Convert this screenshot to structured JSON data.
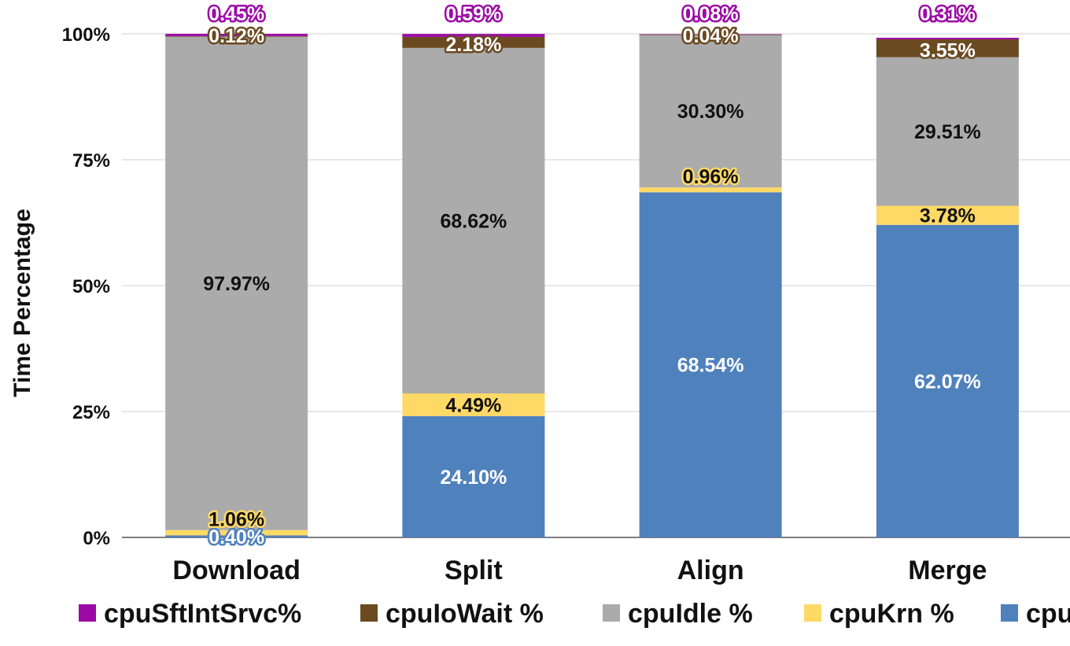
{
  "chart_data": {
    "type": "bar",
    "stacked": true,
    "ylabel": "Time Percentage",
    "ylim": [
      0,
      100
    ],
    "yticks": [
      "0%",
      "25%",
      "50%",
      "75%",
      "100%"
    ],
    "categories": [
      "Download",
      "Split",
      "Align",
      "Merge"
    ],
    "grid": true,
    "legend_position": "bottom",
    "series": [
      {
        "name": "cpuUsr %",
        "color": "#4F81BD",
        "values": [
          0.4,
          24.1,
          68.54,
          62.07
        ],
        "labels": [
          "0.40%",
          "24.10%",
          "68.54%",
          "62.07%"
        ]
      },
      {
        "name": "cpuKrn %",
        "color": "#FFD966",
        "values": [
          1.06,
          4.49,
          0.96,
          3.78
        ],
        "labels": [
          "1.06%",
          "4.49%",
          "0.96%",
          "3.78%"
        ]
      },
      {
        "name": "cpuIdle %",
        "color": "#ABABAB",
        "values": [
          97.97,
          68.62,
          30.3,
          29.51
        ],
        "labels": [
          "97.97%",
          "68.62%",
          "30.30%",
          "29.51%"
        ]
      },
      {
        "name": "cpuIoWait %",
        "color": "#6B4A22",
        "values": [
          0.12,
          2.18,
          0.04,
          3.55
        ],
        "labels": [
          "0.12%",
          "2.18%",
          "0.04%",
          "3.55%"
        ]
      },
      {
        "name": "cpuSftIntSrvc%",
        "color": "#9C0AA6",
        "values": [
          0.45,
          0.59,
          0.08,
          0.31
        ],
        "labels": [
          "0.45%",
          "0.59%",
          "0.08%",
          "0.31%"
        ]
      }
    ],
    "legend_order": [
      "cpuSftIntSrvc%",
      "cpuIoWait %",
      "cpuIdle %",
      "cpuKrn %",
      "cpuUsr %"
    ]
  }
}
